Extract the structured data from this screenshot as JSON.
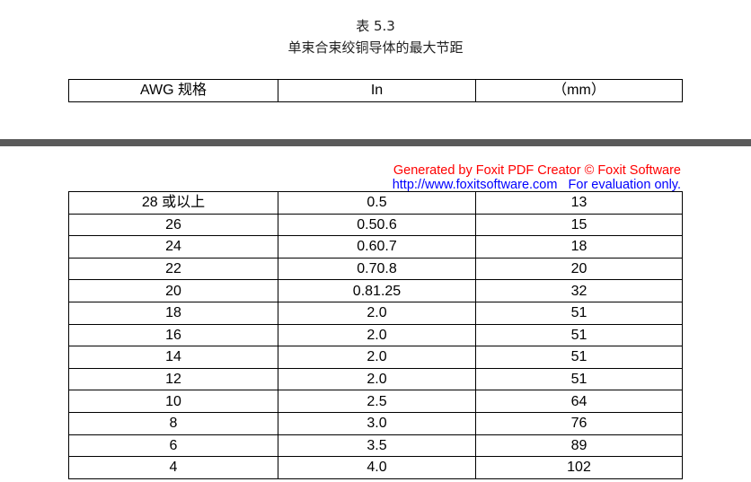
{
  "caption": {
    "table_number": "表 5.3",
    "title": "单束合束绞铜导体的最大节距"
  },
  "header": [
    "AWG 规格",
    "In",
    "（mm）"
  ],
  "watermark": {
    "line1": "Generated by Foxit PDF Creator © Foxit Software",
    "url": "http://www.foxitsoftware.com",
    "note": "For evaluation only.",
    "line1_color": "#ff0000",
    "line2_color": "#0000ff"
  },
  "rows": [
    [
      "28 或以上",
      "0.5",
      "13"
    ],
    [
      "26",
      "0.50.6",
      "15"
    ],
    [
      "24",
      "0.60.7",
      "18"
    ],
    [
      "22",
      "0.70.8",
      "20"
    ],
    [
      "20",
      "0.81.25",
      "32"
    ],
    [
      "18",
      "2.0",
      "51"
    ],
    [
      "16",
      "2.0",
      "51"
    ],
    [
      "14",
      "2.0",
      "51"
    ],
    [
      "12",
      "2.0",
      "51"
    ],
    [
      "10",
      "2.5",
      "64"
    ],
    [
      "8",
      "3.0",
      "76"
    ],
    [
      "6",
      "3.5",
      "89"
    ],
    [
      "4",
      "4.0",
      "102"
    ]
  ]
}
